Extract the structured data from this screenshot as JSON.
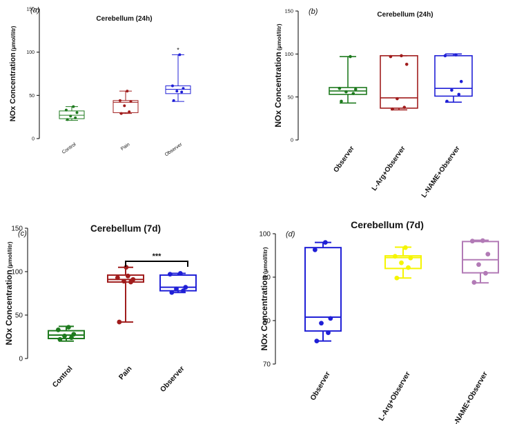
{
  "figure": {
    "colors": {
      "green": "#1e7a1e",
      "red": "#a01c1c",
      "blue": "#1f1fd6",
      "yellow": "#f5f500",
      "purple": "#b27ab6"
    }
  },
  "chart_data": [
    {
      "panel_label": "(a)",
      "type": "boxplot",
      "title": "Cerebellum (24h)",
      "ylabel": "NOx Concentration",
      "ylabel_unit": "(µmol/litr)",
      "ylim": [
        0,
        150
      ],
      "yticks": [
        "0",
        "50",
        "100",
        "150"
      ],
      "categories": [
        "Control",
        "Pain",
        "Observer"
      ],
      "series": [
        {
          "name": "Control",
          "color": "green",
          "min": 21,
          "q1": 23,
          "median": 27,
          "q3": 32,
          "max": 37,
          "points": [
            22,
            24,
            26,
            30,
            33,
            37
          ]
        },
        {
          "name": "Pain",
          "color": "red",
          "min": 29,
          "q1": 30,
          "median": 42,
          "q3": 44,
          "max": 55,
          "points": [
            29,
            31,
            38,
            43,
            44,
            55
          ]
        },
        {
          "name": "Observer",
          "color": "blue",
          "min": 43,
          "q1": 52,
          "median": 57,
          "q3": 61,
          "max": 97,
          "points": [
            44,
            54,
            55,
            58,
            61,
            97
          ]
        }
      ],
      "annotations": [
        {
          "category": "Observer",
          "text": "*"
        }
      ]
    },
    {
      "panel_label": "(b)",
      "type": "boxplot",
      "title": "Cerebellum (24h)",
      "ylabel": "NOx Concentration",
      "ylabel_unit": "(µmol/litr)",
      "ylim": [
        0,
        150
      ],
      "yticks": [
        "0",
        "50",
        "100",
        "150"
      ],
      "categories": [
        "Observer",
        "L-Arg+Observer",
        "L-NAME+Observer"
      ],
      "series": [
        {
          "name": "Observer",
          "color": "green",
          "min": 43,
          "q1": 53,
          "median": 57,
          "q3": 61,
          "max": 97,
          "points": [
            45,
            54,
            56,
            59,
            60,
            97
          ]
        },
        {
          "name": "L-Arg+Observer",
          "color": "red",
          "min": 35,
          "q1": 37,
          "median": 49,
          "q3": 98,
          "max": 98,
          "points": [
            36,
            38,
            48,
            88,
            97,
            98
          ]
        },
        {
          "name": "L-NAME+Observer",
          "color": "blue",
          "min": 44,
          "q1": 51,
          "median": 60,
          "q3": 98,
          "max": 100,
          "points": [
            45,
            53,
            58,
            68,
            98,
            99
          ]
        }
      ],
      "annotations": []
    },
    {
      "panel_label": "(c)",
      "type": "boxplot",
      "title": "Cerebellum (7d)",
      "ylabel": "NOx Concentration",
      "ylabel_unit": "(µmol/litr)",
      "ylim": [
        0,
        150
      ],
      "yticks": [
        "0",
        "50",
        "100",
        "150"
      ],
      "categories": [
        "Control",
        "Pain",
        "Observer"
      ],
      "series": [
        {
          "name": "Control",
          "color": "green",
          "min": 20,
          "q1": 23,
          "median": 27,
          "q3": 32,
          "max": 37,
          "points": [
            22,
            24,
            26,
            28,
            33,
            36
          ]
        },
        {
          "name": "Pain",
          "color": "red",
          "min": 42,
          "q1": 88,
          "median": 91,
          "q3": 96,
          "max": 105,
          "points": [
            42,
            88,
            89,
            91,
            93,
            95,
            105
          ]
        },
        {
          "name": "Observer",
          "color": "blue",
          "min": 76,
          "q1": 78,
          "median": 82,
          "q3": 96,
          "max": 98,
          "points": [
            76,
            78,
            80,
            82,
            97,
            98
          ]
        }
      ],
      "bracket": {
        "from": "Pain",
        "to": "Observer",
        "text": "***"
      }
    },
    {
      "panel_label": "(d)",
      "type": "boxplot",
      "title": "Cerebellum (7d)",
      "ylabel": "NOx Concentration",
      "ylabel_unit": "(µmol/litr)",
      "ylim": [
        70,
        100
      ],
      "yticks": [
        "70",
        "80",
        "90",
        "100"
      ],
      "categories": [
        "Observer",
        "L-Arg+Observer",
        "L-NAME+Observer"
      ],
      "series": [
        {
          "name": "Observer",
          "color": "blue",
          "min": 75.3,
          "q1": 77.6,
          "median": 80.8,
          "q3": 96.8,
          "max": 98,
          "points": [
            75.3,
            77.2,
            79.4,
            80.5,
            96.3,
            98
          ]
        },
        {
          "name": "L-Arg+Observer",
          "color": "yellow",
          "min": 89.8,
          "q1": 92,
          "median": 94.5,
          "q3": 94.9,
          "max": 96.9,
          "points": [
            89.8,
            92.2,
            93.3,
            94.4,
            94.8,
            96.8
          ]
        },
        {
          "name": "L-NAME+Observer",
          "color": "purple",
          "min": 88.7,
          "q1": 91,
          "median": 94,
          "q3": 98.2,
          "max": 98.5,
          "points": [
            88.8,
            90.9,
            92.9,
            95.3,
            98.3,
            98.4
          ]
        }
      ],
      "annotations": []
    }
  ]
}
